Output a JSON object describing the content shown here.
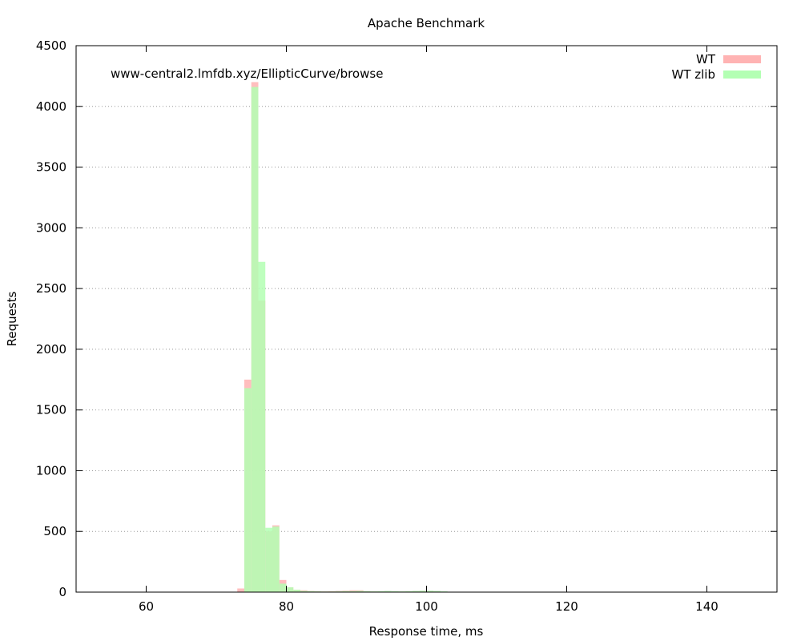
{
  "chart_data": {
    "type": "bar",
    "title": "Apache Benchmark",
    "annotation": "www-central2.lmfdb.xyz/EllipticCurve/browse",
    "xlabel": "Response time, ms",
    "ylabel": "Requests",
    "xlim": [
      50,
      150
    ],
    "ylim": [
      0,
      4500
    ],
    "x_ticks": [
      60,
      80,
      100,
      120,
      140
    ],
    "y_ticks": [
      0,
      500,
      1000,
      1500,
      2000,
      2500,
      3000,
      3500,
      4000,
      4500
    ],
    "grid": "horizontal-dotted",
    "legend_position": "top-right",
    "bin_width_ms": 1,
    "series": [
      {
        "name": "WT",
        "color": "#ffb3b3",
        "x": [
          73,
          74,
          75,
          76,
          77,
          78,
          79,
          80,
          81,
          82,
          83,
          84,
          85,
          86,
          87,
          88,
          89,
          90,
          91,
          92,
          93,
          94,
          95,
          96,
          97,
          98,
          99,
          100,
          101
        ],
        "values": [
          30,
          1750,
          4200,
          2400,
          500,
          550,
          100,
          40,
          20,
          15,
          10,
          8,
          6,
          8,
          10,
          12,
          15,
          15,
          8,
          6,
          5,
          5,
          5,
          5,
          6,
          8,
          10,
          8,
          5
        ]
      },
      {
        "name": "WT zlib",
        "color": "#b3ffb3",
        "x": [
          73,
          74,
          75,
          76,
          77,
          78,
          79,
          80,
          81,
          82,
          83,
          84,
          85,
          86,
          87,
          88,
          89,
          90,
          91,
          92,
          93,
          94,
          95,
          96,
          97,
          98,
          99,
          100,
          101,
          102
        ],
        "values": [
          0,
          1680,
          4160,
          2720,
          530,
          540,
          70,
          40,
          20,
          10,
          8,
          6,
          5,
          5,
          6,
          8,
          8,
          10,
          8,
          6,
          8,
          10,
          8,
          6,
          8,
          10,
          12,
          12,
          10,
          6
        ]
      }
    ]
  }
}
